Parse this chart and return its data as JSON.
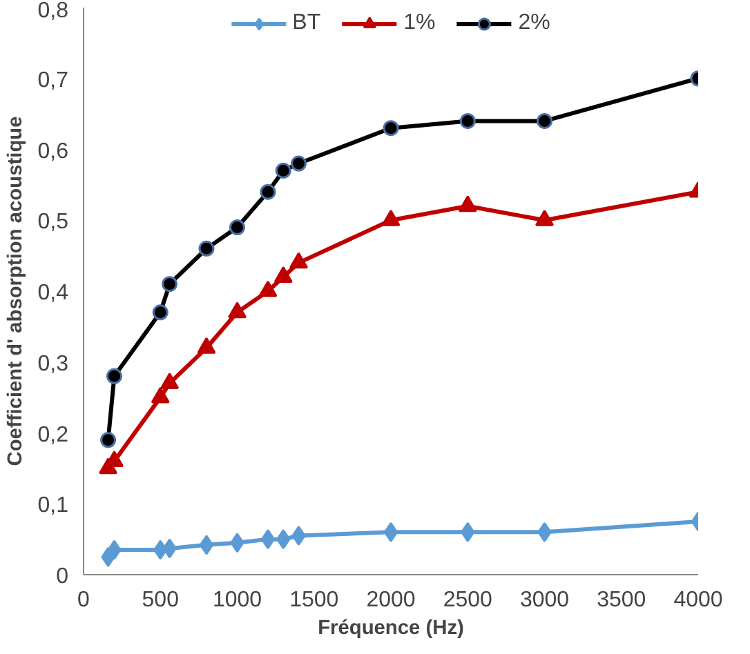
{
  "chart_data": {
    "type": "line",
    "xlabel": "Fréquence (Hz)",
    "ylabel": "Coefficient d' absorption acoustique",
    "x": [
      160,
      200,
      500,
      560,
      800,
      1000,
      1200,
      1300,
      1400,
      2000,
      2500,
      3000,
      4000
    ],
    "series": [
      {
        "name": "BT",
        "color": "#5b9bd5",
        "marker": "diamond",
        "values": [
          0.025,
          0.035,
          0.035,
          0.037,
          0.042,
          0.045,
          0.05,
          0.05,
          0.055,
          0.06,
          0.06,
          0.06,
          0.075
        ]
      },
      {
        "name": "1%",
        "color": "#c00000",
        "marker": "triangle",
        "values": [
          0.15,
          0.16,
          0.25,
          0.27,
          0.32,
          0.37,
          0.4,
          0.42,
          0.44,
          0.5,
          0.52,
          0.5,
          0.54
        ]
      },
      {
        "name": "2%",
        "color": "#000000",
        "marker": "circle",
        "values": [
          0.19,
          0.28,
          0.37,
          0.41,
          0.46,
          0.49,
          0.54,
          0.57,
          0.58,
          0.63,
          0.64,
          0.64,
          0.7
        ]
      }
    ],
    "xlim": [
      0,
      4000
    ],
    "xticks": [
      0,
      500,
      1000,
      1500,
      2000,
      2500,
      3000,
      3500,
      4000
    ],
    "ylim": [
      0,
      0.8
    ],
    "yticks": [
      0,
      {
        "value": 0.1,
        "label": "0,1"
      },
      {
        "value": 0.2,
        "label": "0,2"
      },
      {
        "value": 0.3,
        "label": "0,3"
      },
      {
        "value": 0.4,
        "label": "0,4"
      },
      {
        "value": 0.5,
        "label": "0,5"
      },
      {
        "value": 0.6,
        "label": "0,6"
      },
      {
        "value": 0.7,
        "label": "0,7"
      },
      {
        "value": 0.8,
        "label": "0,8"
      }
    ],
    "grid": false,
    "legend": "top"
  }
}
